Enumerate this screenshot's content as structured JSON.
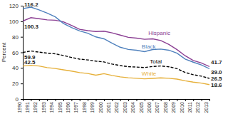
{
  "chart_data": {
    "type": "line",
    "y_label": "Percent",
    "x": [
      1990,
      1991,
      1992,
      1993,
      1994,
      1995,
      1996,
      1997,
      1998,
      1999,
      2000,
      2001,
      2002,
      2003,
      2004,
      2005,
      2006,
      2007,
      2008,
      2009,
      2010,
      2011,
      2012,
      2013
    ],
    "xlim": [
      1990,
      2013
    ],
    "xticks": [
      1990,
      1991,
      1992,
      1993,
      1994,
      1995,
      1996,
      1997,
      1998,
      1999,
      2000,
      2001,
      2002,
      2003,
      2004,
      2005,
      2006,
      2007,
      2008,
      2009,
      2010,
      2011,
      2012,
      2013
    ],
    "ylim": [
      0,
      120
    ],
    "yticks": [
      0,
      20,
      40,
      60,
      80,
      100,
      120
    ],
    "grid": false,
    "series": [
      {
        "name": "Hispanic",
        "color": "#8b3f93",
        "line_style": "solid",
        "values": [
          100.3,
          104.6,
          103.3,
          101.8,
          101.3,
          99.3,
          94.6,
          89.6,
          87.9,
          86.8,
          87.3,
          85.1,
          82.2,
          79.4,
          78.3,
          76.8,
          77.4,
          75.3,
          70.1,
          63.6,
          55.7,
          49.6,
          46.3,
          41.7
        ],
        "value_labels": [
          "100.3",
          null,
          null,
          null,
          null,
          null,
          null,
          null,
          null,
          null,
          null,
          null,
          null,
          null,
          null,
          null,
          null,
          null,
          null,
          null,
          null,
          null,
          null,
          "41.7"
        ]
      },
      {
        "name": "Black",
        "color": "#4f81bd",
        "line_style": "solid",
        "values": [
          116.2,
          118.2,
          114.7,
          110.5,
          105.7,
          97.2,
          91.9,
          87.6,
          84.7,
          79.9,
          77.4,
          71.8,
          66.6,
          63.8,
          62.7,
          60.9,
          63.7,
          64.2,
          62.8,
          59.0,
          51.5,
          47.4,
          43.9,
          39.0
        ],
        "value_labels": [
          "116.2",
          null,
          null,
          null,
          null,
          null,
          null,
          null,
          null,
          null,
          null,
          null,
          null,
          null,
          null,
          null,
          null,
          null,
          null,
          null,
          null,
          null,
          null,
          "39.0"
        ]
      },
      {
        "name": "Total",
        "color": "#000000",
        "line_style": "dashed",
        "values": [
          59.9,
          61.8,
          60.3,
          59.0,
          58.2,
          56.0,
          53.5,
          51.3,
          50.3,
          48.8,
          47.7,
          45.0,
          43.0,
          41.6,
          41.1,
          40.5,
          41.9,
          42.5,
          41.5,
          39.1,
          34.2,
          31.3,
          29.4,
          26.5
        ],
        "value_labels": [
          "59.9",
          null,
          null,
          null,
          null,
          null,
          null,
          null,
          null,
          null,
          null,
          null,
          null,
          null,
          null,
          null,
          null,
          null,
          null,
          null,
          null,
          null,
          null,
          "26.5"
        ]
      },
      {
        "name": "White",
        "color": "#e6b03a",
        "line_style": "solid",
        "values": [
          42.5,
          43.4,
          42.5,
          40.4,
          39.3,
          37.6,
          36.0,
          34.0,
          32.9,
          30.7,
          32.6,
          30.3,
          28.5,
          27.4,
          26.7,
          26.0,
          26.6,
          27.2,
          26.7,
          25.6,
          23.5,
          21.7,
          20.5,
          18.6
        ],
        "value_labels": [
          "42.5",
          null,
          null,
          null,
          null,
          null,
          null,
          null,
          null,
          null,
          null,
          null,
          null,
          null,
          null,
          null,
          null,
          null,
          null,
          null,
          null,
          null,
          null,
          "18.6"
        ]
      }
    ]
  }
}
